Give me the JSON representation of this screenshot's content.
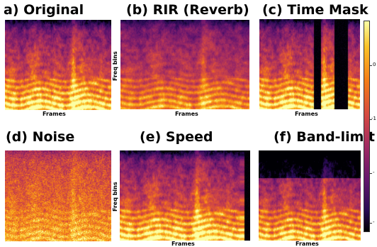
{
  "chart_data": {
    "type": "heatmap",
    "colormap": "plasma/inferno",
    "panels": [
      {
        "title": "a) Original",
        "xlabel": "Frames",
        "ylabel": "",
        "variant": "original"
      },
      {
        "title": "(b) RIR (Reverb)",
        "xlabel": "Frames",
        "ylabel": "Freq bins",
        "variant": "reverb"
      },
      {
        "title": "(c) Time Mask",
        "xlabel": "Frames",
        "ylabel": "",
        "variant": "timemask"
      },
      {
        "title": "(d) Noise",
        "xlabel": "",
        "ylabel": "",
        "variant": "noise"
      },
      {
        "title": "(e) Speed",
        "xlabel": "Frames",
        "ylabel": "Freq bins",
        "variant": "speed"
      },
      {
        "title": "(f) Band-limit",
        "xlabel": "Frames",
        "ylabel": "",
        "variant": "bandlimit"
      }
    ],
    "colorbar": {
      "ticks": [
        "0",
        "-1",
        "-",
        "-"
      ]
    }
  }
}
